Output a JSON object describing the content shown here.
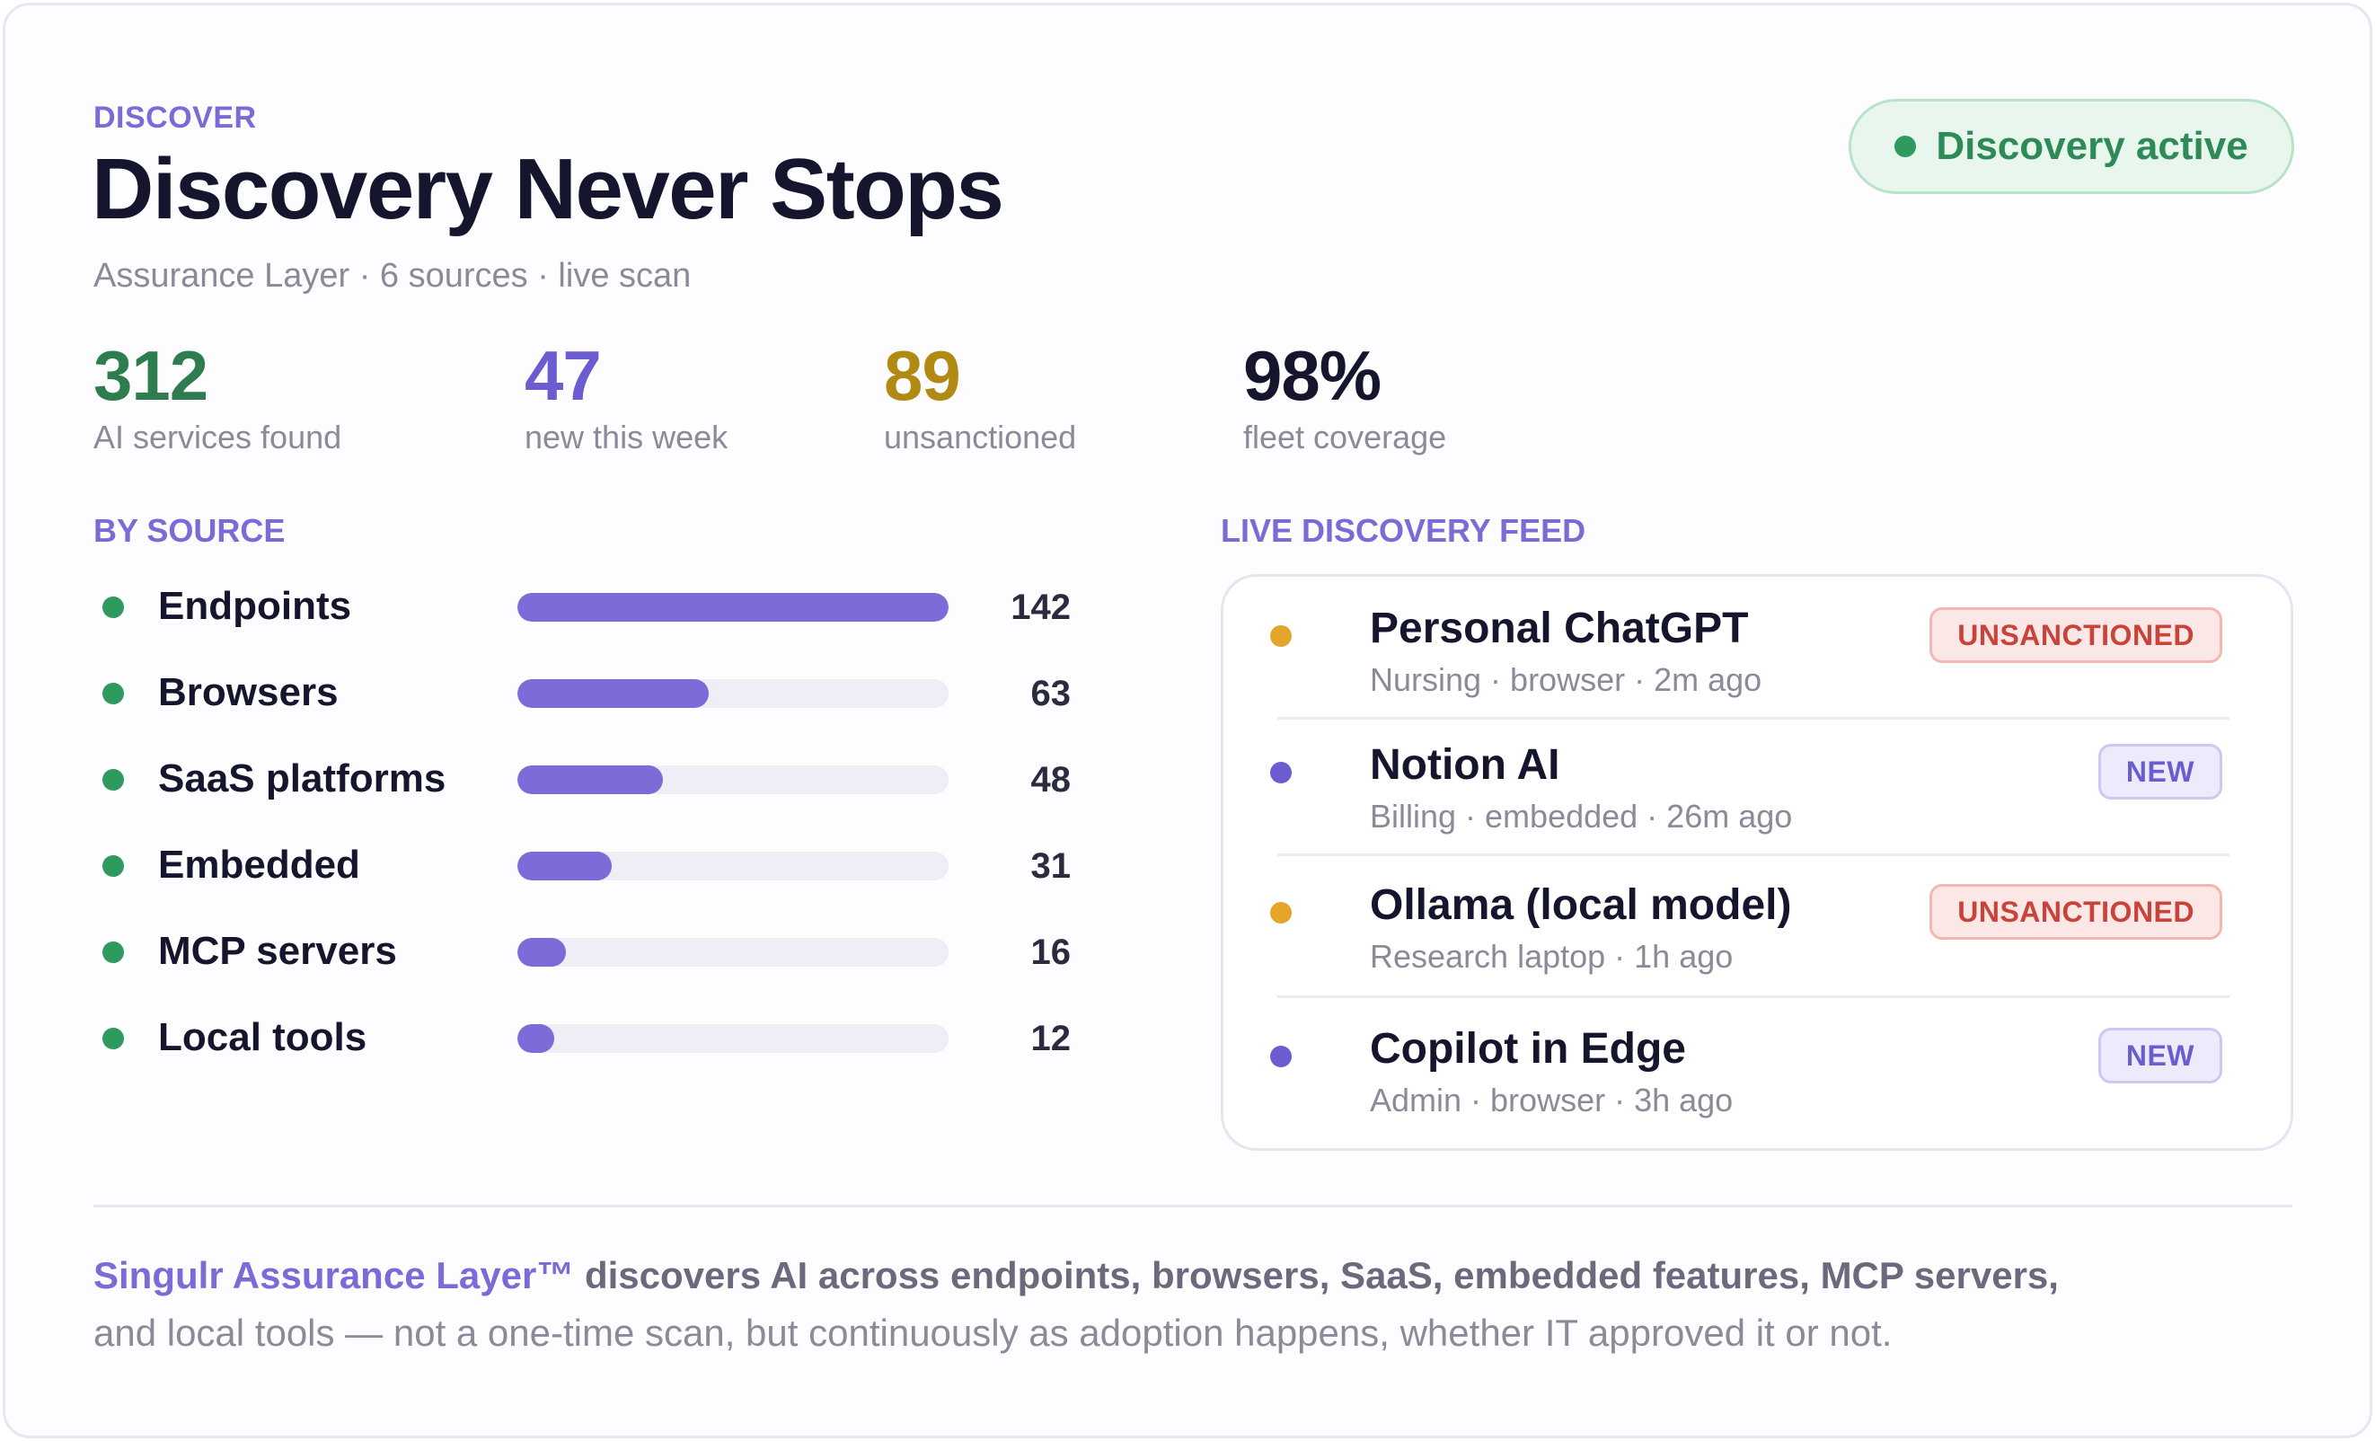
{
  "header": {
    "eyebrow": "DISCOVER",
    "title": "Discovery Never Stops",
    "subtitle": "Assurance Layer · 6 sources · live scan"
  },
  "status": {
    "label": "Discovery active",
    "color": "#2e9a5e"
  },
  "stats": [
    {
      "value": "312",
      "label": "AI services found",
      "color": "#2e7d4f"
    },
    {
      "value": "47",
      "label": "new this week",
      "color": "#6b5cd0"
    },
    {
      "value": "89",
      "label": "unsanctioned",
      "color": "#b08a12"
    },
    {
      "value": "98%",
      "label": "fleet coverage",
      "color": "#15162d"
    }
  ],
  "by_source": {
    "title": "BY SOURCE",
    "max": 142,
    "items": [
      {
        "label": "Endpoints",
        "count": 142
      },
      {
        "label": "Browsers",
        "count": 63
      },
      {
        "label": "SaaS platforms",
        "count": 48
      },
      {
        "label": "Embedded",
        "count": 31
      },
      {
        "label": "MCP servers",
        "count": 16
      },
      {
        "label": "Local tools",
        "count": 12
      }
    ]
  },
  "feed": {
    "title": "LIVE DISCOVERY FEED",
    "items": [
      {
        "name": "Personal ChatGPT",
        "meta": "Nursing · browser · 2m ago",
        "tag": "UNSANCTIONED",
        "status": "unsanctioned",
        "dot_color": "#e3a52a"
      },
      {
        "name": "Notion AI",
        "meta": "Billing · embedded · 26m ago",
        "tag": "NEW",
        "status": "new",
        "dot_color": "#6b5cd0"
      },
      {
        "name": "Ollama (local model)",
        "meta": "Research laptop · 1h ago",
        "tag": "UNSANCTIONED",
        "status": "unsanctioned",
        "dot_color": "#e3a52a"
      },
      {
        "name": "Copilot in Edge",
        "meta": "Admin · browser · 3h ago",
        "tag": "NEW",
        "status": "new",
        "dot_color": "#6b5cd0"
      }
    ]
  },
  "footer": {
    "brand": "Singulr Assurance Layer™",
    "strong": " discovers AI across endpoints, browsers, SaaS, embedded features, MCP servers,",
    "rest": "and local tools — not a one-time scan, but continuously as adoption happens, whether IT approved it or not."
  }
}
